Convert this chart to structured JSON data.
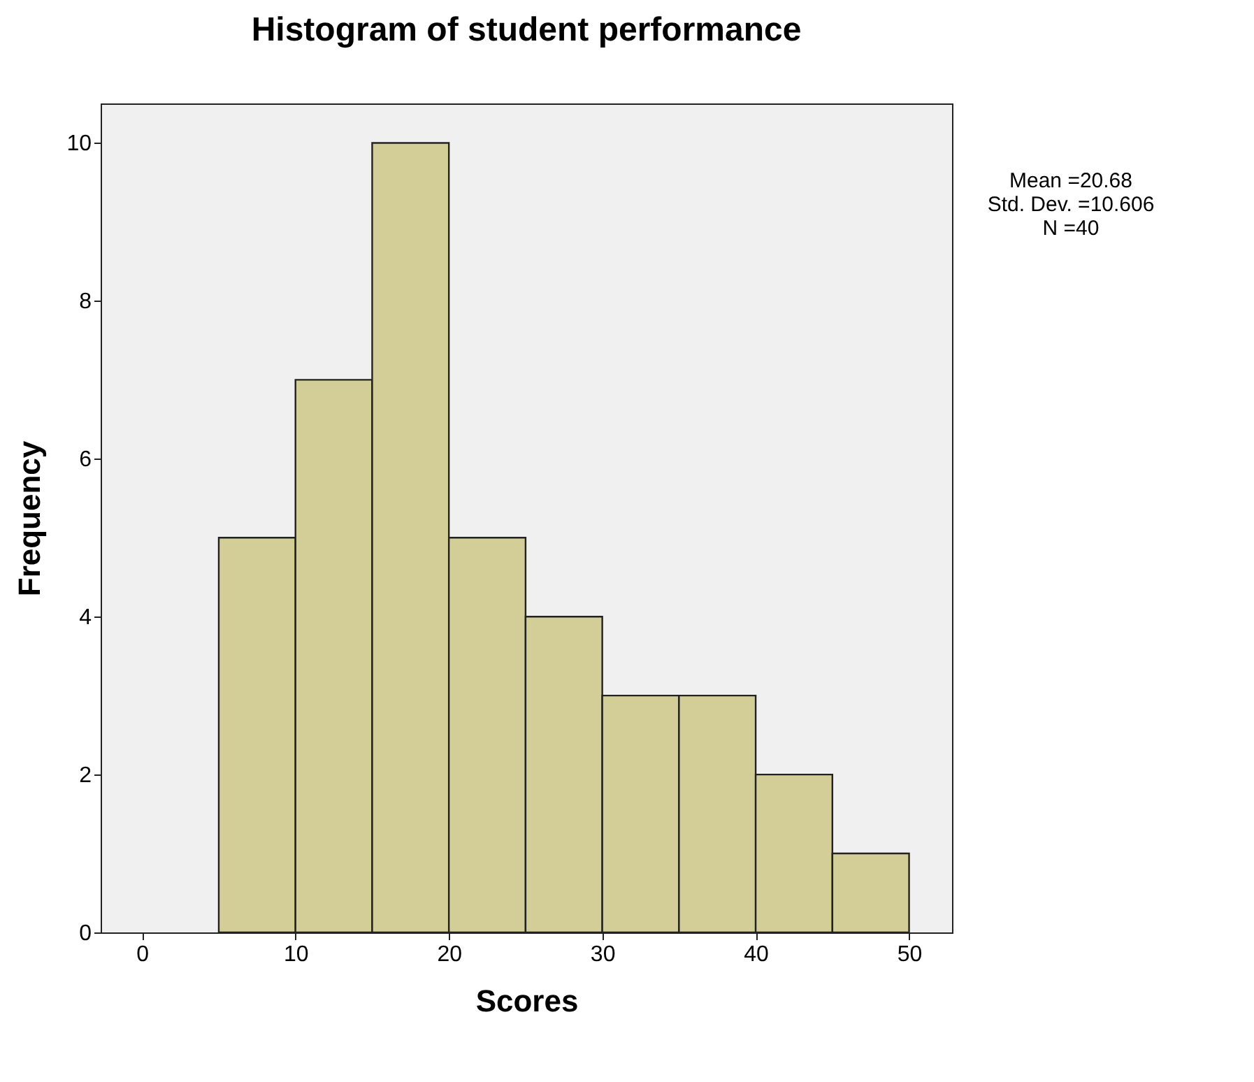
{
  "chart_data": {
    "type": "histogram",
    "title": "Histogram of student performance",
    "xlabel": "Scores",
    "ylabel": "Frequency",
    "bins": [
      5,
      10,
      15,
      20,
      25,
      30,
      35,
      40,
      45,
      50
    ],
    "values": [
      5,
      7,
      10,
      5,
      4,
      3,
      3,
      2,
      1
    ],
    "color": "#d3ce97",
    "xlim": [
      -2.7,
      52.8
    ],
    "xticks": [
      0,
      10,
      20,
      30,
      40,
      50
    ],
    "ylim": [
      0,
      10.5
    ],
    "yticks": [
      0,
      2,
      4,
      6,
      8,
      10
    ],
    "grid": false,
    "annotations": [
      "Mean =20.68",
      "Std. Dev. =10.606",
      "N =40"
    ]
  }
}
